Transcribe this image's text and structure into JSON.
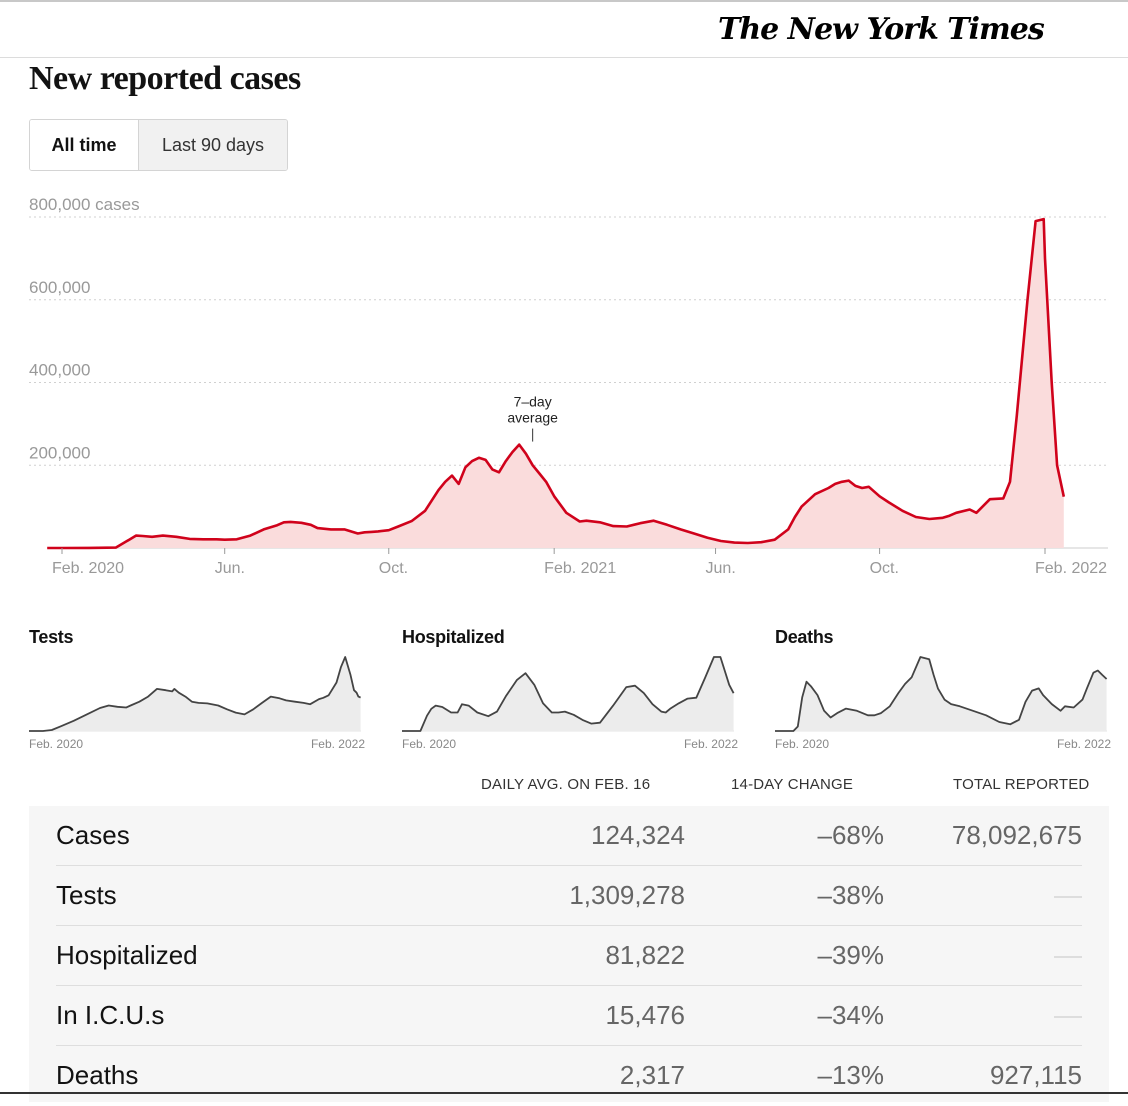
{
  "header": {
    "logo_text": "The New York Times"
  },
  "page_title": "New reported cases",
  "toggle": {
    "options": [
      "All time",
      "Last 90 days"
    ],
    "selected": "All time"
  },
  "colors": {
    "case_line": "#d0021b",
    "case_fill": "#fadcdc",
    "small_line": "#444444",
    "small_fill": "#ececec",
    "grid": "#d0d0d0"
  },
  "chart_data": [
    {
      "type": "area",
      "title": "New reported cases",
      "ylabel": "cases",
      "ytick_labels": [
        "800,000 cases",
        "600,000",
        "400,000",
        "200,000"
      ],
      "yticks": [
        800000,
        600000,
        400000,
        200000
      ],
      "ylim": [
        0,
        800000
      ],
      "x_unit": "days since Feb. 1, 2020",
      "xlim": [
        -12,
        746
      ],
      "xticks": [
        0,
        121,
        243,
        366,
        486,
        608,
        731
      ],
      "xtick_labels": [
        "Feb. 2020",
        "Jun.",
        "Oct.",
        "Feb. 2021",
        "Jun.",
        "Oct.",
        "Feb. 2022"
      ],
      "grid": true,
      "annotation": {
        "text_line1": "7–day",
        "text_line2": "average",
        "x": 350,
        "y": 250000
      },
      "series": [
        {
          "name": "7-day average",
          "x": [
            -11,
            0,
            20,
            40,
            50,
            55,
            60,
            67,
            75,
            85,
            95,
            105,
            115,
            121,
            130,
            140,
            150,
            160,
            165,
            170,
            178,
            185,
            190,
            200,
            210,
            220,
            225,
            230,
            235,
            243,
            250,
            260,
            270,
            280,
            285,
            290,
            295,
            300,
            305,
            310,
            315,
            320,
            325,
            330,
            335,
            340,
            345,
            350,
            355,
            360,
            366,
            375,
            385,
            390,
            400,
            410,
            420,
            430,
            440,
            450,
            460,
            470,
            480,
            490,
            500,
            510,
            520,
            530,
            540,
            545,
            550,
            560,
            570,
            575,
            580,
            585,
            590,
            595,
            600,
            608,
            615,
            625,
            635,
            645,
            655,
            660,
            665,
            675,
            680,
            690,
            700,
            705,
            710,
            718,
            724,
            730,
            731,
            736,
            740,
            745
          ],
          "y": [
            0,
            0,
            300,
            1000,
            20000,
            30000,
            29000,
            27000,
            30000,
            27000,
            22000,
            21000,
            21000,
            20000,
            21000,
            30000,
            45000,
            55000,
            62000,
            63000,
            61000,
            56000,
            48000,
            45000,
            45000,
            35000,
            38000,
            39000,
            40000,
            43000,
            52000,
            65000,
            90000,
            140000,
            160000,
            175000,
            155000,
            195000,
            210000,
            218000,
            213000,
            190000,
            183000,
            210000,
            232000,
            250000,
            228000,
            200000,
            180000,
            160000,
            125000,
            85000,
            64000,
            66000,
            62000,
            53000,
            52000,
            60000,
            66000,
            56000,
            45000,
            35000,
            25000,
            17000,
            13000,
            12000,
            14000,
            20000,
            45000,
            75000,
            100000,
            130000,
            145000,
            155000,
            160000,
            163000,
            150000,
            145000,
            148000,
            125000,
            110000,
            90000,
            75000,
            70000,
            73000,
            78000,
            85000,
            93000,
            85000,
            118000,
            120000,
            160000,
            320000,
            600000,
            790000,
            795000,
            700000,
            400000,
            200000,
            124000
          ]
        }
      ]
    },
    {
      "type": "area",
      "title": "Tests",
      "xtick_labels": [
        "Feb. 2020",
        "Feb. 2022"
      ],
      "xlim": [
        -12,
        746
      ],
      "series": [
        {
          "name": "Tests",
          "x": [
            -12,
            20,
            40,
            60,
            90,
            120,
            150,
            170,
            190,
            210,
            220,
            240,
            260,
            280,
            300,
            315,
            320,
            330,
            345,
            360,
            375,
            395,
            420,
            440,
            460,
            480,
            500,
            520,
            540,
            560,
            575,
            595,
            615,
            630,
            650,
            660,
            672,
            690,
            700,
            710,
            722,
            730,
            736,
            740,
            745
          ],
          "y": [
            0,
            0,
            40000,
            180000,
            400000,
            650000,
            900000,
            1000000,
            950000,
            920000,
            1000000,
            1150000,
            1350000,
            1650000,
            1600000,
            1550000,
            1650000,
            1500000,
            1350000,
            1150000,
            1100000,
            1080000,
            1000000,
            850000,
            720000,
            650000,
            850000,
            1100000,
            1350000,
            1280000,
            1200000,
            1150000,
            1100000,
            1050000,
            1250000,
            1300000,
            1400000,
            1900000,
            2500000,
            2900000,
            2200000,
            1600000,
            1500000,
            1350000,
            1309278
          ]
        }
      ]
    },
    {
      "type": "area",
      "title": "Hospitalized",
      "xtick_labels": [
        "Feb. 2020",
        "Feb. 2022"
      ],
      "xlim": [
        -12,
        746
      ],
      "series": [
        {
          "name": "Hospitalized",
          "x": [
            -12,
            25,
            30,
            45,
            55,
            65,
            80,
            100,
            115,
            125,
            140,
            160,
            185,
            205,
            225,
            250,
            270,
            290,
            310,
            330,
            345,
            360,
            380,
            400,
            420,
            440,
            470,
            500,
            520,
            540,
            560,
            580,
            590,
            600,
            620,
            640,
            660,
            680,
            700,
            715,
            725,
            735,
            745
          ],
          "y": [
            0,
            0,
            0,
            33000,
            48000,
            55000,
            52000,
            40000,
            40000,
            58000,
            55000,
            40000,
            32000,
            42000,
            75000,
            110000,
            125000,
            100000,
            60000,
            40000,
            40000,
            42000,
            35000,
            24000,
            16000,
            18000,
            55000,
            95000,
            98000,
            82000,
            58000,
            42000,
            40000,
            48000,
            60000,
            70000,
            72000,
            115000,
            160000,
            160000,
            130000,
            100000,
            81822
          ]
        }
      ]
    },
    {
      "type": "area",
      "title": "Deaths",
      "xtick_labels": [
        "Feb. 2020",
        "Feb. 2022"
      ],
      "xlim": [
        -12,
        746
      ],
      "series": [
        {
          "name": "Deaths",
          "x": [
            -12,
            30,
            40,
            50,
            60,
            70,
            85,
            100,
            115,
            130,
            150,
            175,
            200,
            215,
            230,
            250,
            270,
            285,
            300,
            320,
            340,
            350,
            360,
            375,
            390,
            410,
            440,
            470,
            500,
            525,
            545,
            560,
            575,
            590,
            600,
            620,
            640,
            650,
            670,
            690,
            700,
            715,
            725,
            735,
            745
          ],
          "y": [
            0,
            0,
            200,
            1500,
            2200,
            2000,
            1600,
            900,
            600,
            800,
            1000,
            900,
            700,
            700,
            800,
            1100,
            1700,
            2100,
            2400,
            3300,
            3200,
            2500,
            1900,
            1400,
            1200,
            1100,
            900,
            700,
            400,
            300,
            500,
            1300,
            1800,
            1900,
            1600,
            1200,
            900,
            1100,
            1050,
            1400,
            1900,
            2600,
            2700,
            2500,
            2317
          ]
        }
      ]
    }
  ],
  "table": {
    "columns": [
      "DAILY AVG. ON FEB. 16",
      "14-DAY CHANGE",
      "TOTAL REPORTED"
    ],
    "rows": [
      {
        "name": "Cases",
        "daily_avg": "124,324",
        "change": "–68%",
        "total": "78,092,675"
      },
      {
        "name": "Tests",
        "daily_avg": "1,309,278",
        "change": "–38%",
        "total": ""
      },
      {
        "name": "Hospitalized",
        "daily_avg": "81,822",
        "change": "–39%",
        "total": ""
      },
      {
        "name": "In I.C.U.s",
        "daily_avg": "15,476",
        "change": "–34%",
        "total": ""
      },
      {
        "name": "Deaths",
        "daily_avg": "2,317",
        "change": "–13%",
        "total": "927,115"
      }
    ]
  }
}
